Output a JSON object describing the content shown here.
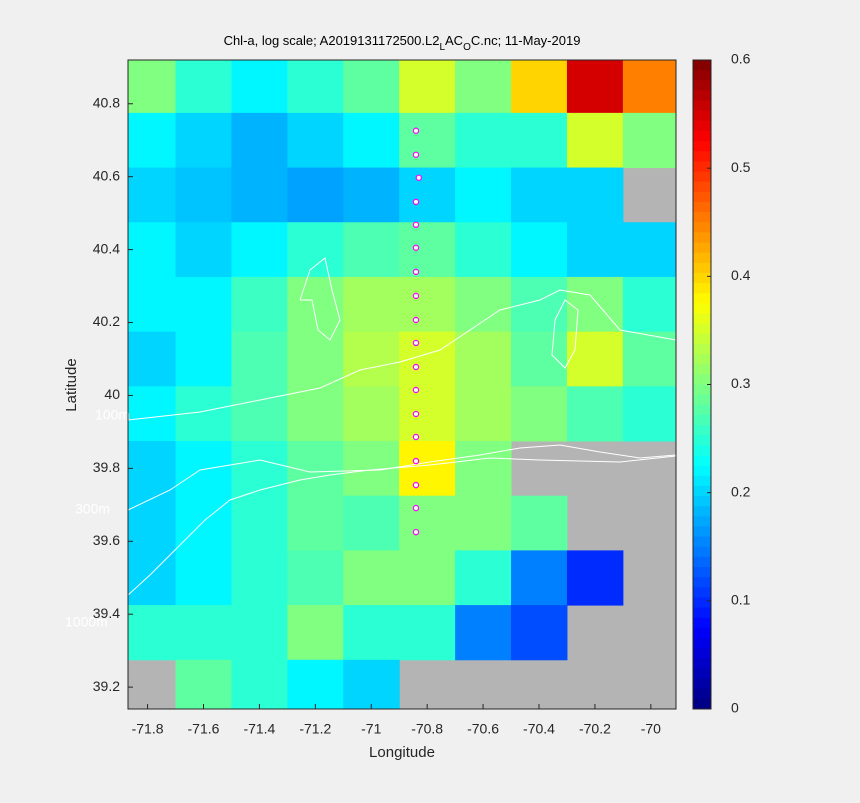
{
  "chart_data": {
    "type": "heatmap",
    "title": [
      {
        "text": "Chl-a, log scale; A2019131172500.L2",
        "sub": false
      },
      {
        "text": "L",
        "sub": true
      },
      {
        "text": "AC",
        "sub": false
      },
      {
        "text": "O",
        "sub": true
      },
      {
        "text": "C.nc; 11-May-2019",
        "sub": false
      }
    ],
    "x_label": "Longitude",
    "y_label": "Latitude",
    "xlim": [
      -71.87,
      -69.91
    ],
    "ylim": [
      39.14,
      40.92
    ],
    "xticks": [
      -71.8,
      -71.6,
      -71.4,
      -71.2,
      -71,
      -70.8,
      -70.6,
      -70.4,
      -70.2,
      -70
    ],
    "yticks": [
      39.2,
      39.4,
      39.6,
      39.8,
      40,
      40.2,
      40.4,
      40.6,
      40.8
    ],
    "x": [
      -71.8,
      -71.6,
      -71.4,
      -71.2,
      -71.0,
      -70.8,
      -70.6,
      -70.4,
      -70.2,
      -70.0
    ],
    "y": [
      40.85,
      40.7,
      40.55,
      40.4,
      40.25,
      40.1,
      39.95,
      39.8,
      39.65,
      39.5,
      39.35,
      39.2
    ],
    "values": [
      [
        0.3,
        0.25,
        0.22,
        0.25,
        0.28,
        0.35,
        0.3,
        0.4,
        0.55,
        0.45
      ],
      [
        0.22,
        0.2,
        0.18,
        0.2,
        0.22,
        0.28,
        0.25,
        0.25,
        0.35,
        0.3
      ],
      [
        0.2,
        0.19,
        0.18,
        0.17,
        0.18,
        0.2,
        0.22,
        0.2,
        0.2,
        null
      ],
      [
        0.22,
        0.2,
        0.22,
        0.25,
        0.27,
        0.28,
        0.25,
        0.22,
        0.2,
        0.2
      ],
      [
        0.22,
        0.22,
        0.26,
        0.3,
        0.32,
        0.32,
        0.3,
        0.27,
        0.3,
        0.25
      ],
      [
        0.2,
        0.22,
        0.27,
        0.3,
        0.33,
        0.35,
        0.32,
        0.28,
        0.35,
        0.28
      ],
      [
        0.22,
        0.25,
        0.27,
        0.3,
        0.32,
        0.35,
        0.32,
        0.3,
        0.27,
        0.25
      ],
      [
        0.2,
        0.22,
        0.25,
        0.28,
        0.3,
        0.38,
        0.3,
        null,
        null,
        null
      ],
      [
        0.2,
        0.22,
        0.25,
        0.28,
        0.27,
        0.3,
        0.3,
        0.28,
        null,
        null
      ],
      [
        0.2,
        0.22,
        0.25,
        0.27,
        0.3,
        0.3,
        0.25,
        0.15,
        0.1,
        null
      ],
      [
        0.25,
        0.25,
        0.25,
        0.3,
        0.25,
        0.25,
        0.15,
        0.12,
        null,
        null
      ],
      [
        null,
        0.28,
        0.25,
        0.22,
        0.2,
        null,
        null,
        null,
        null,
        null
      ]
    ],
    "nan_color": "#b4b4b4",
    "colormap": "jet",
    "clim": [
      0,
      0.6
    ],
    "cticks": [
      0,
      0.1,
      0.2,
      0.3,
      0.4,
      0.5,
      0.6
    ],
    "stations": {
      "color": "#ff00ff",
      "x": [
        -70.84,
        -70.84,
        -70.83,
        -70.84,
        -70.84,
        -70.84,
        -70.84,
        -70.84,
        -70.84,
        -70.84,
        -70.84,
        -70.84,
        -70.84,
        -70.84,
        -70.84,
        -70.84,
        -70.84,
        -70.84
      ],
      "y": [
        40.726,
        40.66,
        40.597,
        40.531,
        40.468,
        40.405,
        40.339,
        40.273,
        40.207,
        40.144,
        40.078,
        40.015,
        39.949,
        39.886,
        39.82,
        39.754,
        39.691,
        39.625
      ]
    },
    "contour_labels": [
      "100m",
      "300m",
      "1000m"
    ]
  }
}
